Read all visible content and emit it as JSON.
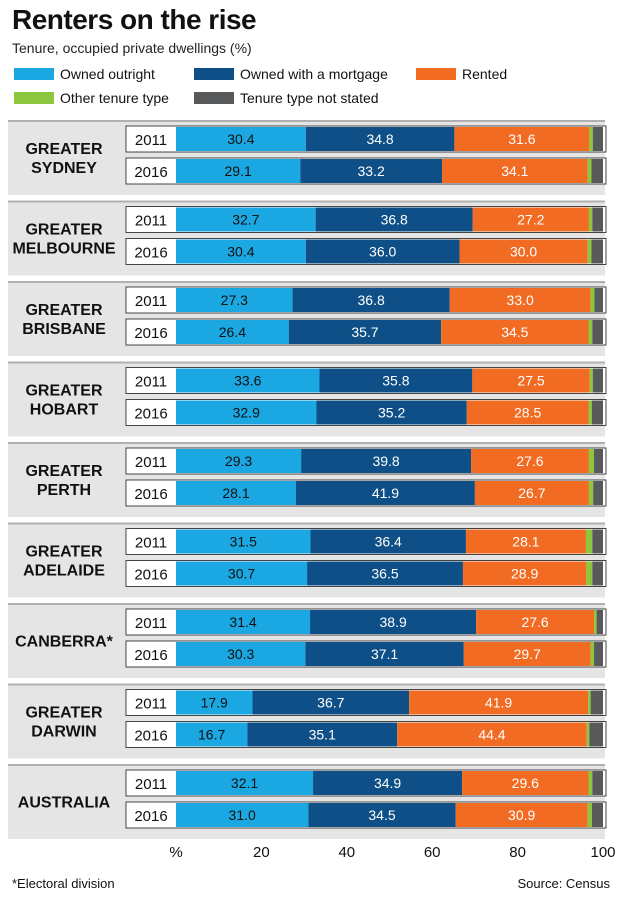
{
  "chart_data": {
    "type": "bar",
    "stacked": true,
    "orientation": "horizontal",
    "title": "Renters on the rise",
    "subtitle": "Tenure, occupied private dwellings (%)",
    "xlim": [
      0,
      100
    ],
    "xticks": [
      "%",
      "20",
      "40",
      "60",
      "80",
      "100"
    ],
    "legend": [
      {
        "name": "Owned outright",
        "color": "#1ba7e1"
      },
      {
        "name": "Owned with a mortgage",
        "color": "#0d4f86"
      },
      {
        "name": "Rented",
        "color": "#f26b22"
      },
      {
        "name": "Other tenure type",
        "color": "#8cc63f"
      },
      {
        "name": "Tenure type not stated",
        "color": "#58595b"
      }
    ],
    "groups": [
      {
        "name": "GREATER\nSYDNEY",
        "rows": [
          {
            "year": "2011",
            "values": [
              30.4,
              34.8,
              31.6,
              0.8,
              2.4
            ]
          },
          {
            "year": "2016",
            "values": [
              29.1,
              33.2,
              34.1,
              0.9,
              2.7
            ]
          }
        ]
      },
      {
        "name": "GREATER\nMELBOURNE",
        "rows": [
          {
            "year": "2011",
            "values": [
              32.7,
              36.8,
              27.2,
              0.8,
              2.5
            ]
          },
          {
            "year": "2016",
            "values": [
              30.4,
              36.0,
              30.0,
              0.9,
              2.7
            ]
          }
        ]
      },
      {
        "name": "GREATER\nBRISBANE",
        "rows": [
          {
            "year": "2011",
            "values": [
              27.3,
              36.8,
              33.0,
              0.9,
              2.0
            ]
          },
          {
            "year": "2016",
            "values": [
              26.4,
              35.7,
              34.5,
              0.9,
              2.5
            ]
          }
        ]
      },
      {
        "name": "GREATER\nHOBART",
        "rows": [
          {
            "year": "2011",
            "values": [
              33.6,
              35.8,
              27.5,
              0.7,
              2.4
            ]
          },
          {
            "year": "2016",
            "values": [
              32.9,
              35.2,
              28.5,
              0.8,
              2.6
            ]
          }
        ]
      },
      {
        "name": "GREATER\nPERTH",
        "rows": [
          {
            "year": "2011",
            "values": [
              29.3,
              39.8,
              27.6,
              1.2,
              2.1
            ]
          },
          {
            "year": "2016",
            "values": [
              28.1,
              41.9,
              26.7,
              1.0,
              2.3
            ]
          }
        ]
      },
      {
        "name": "GREATER\nADELAIDE",
        "rows": [
          {
            "year": "2011",
            "values": [
              31.5,
              36.4,
              28.1,
              1.5,
              2.5
            ]
          },
          {
            "year": "2016",
            "values": [
              30.7,
              36.5,
              28.9,
              1.4,
              2.5
            ]
          }
        ]
      },
      {
        "name": "CANBERRA*",
        "rows": [
          {
            "year": "2011",
            "values": [
              31.4,
              38.9,
              27.6,
              0.6,
              1.5
            ]
          },
          {
            "year": "2016",
            "values": [
              30.3,
              37.1,
              29.7,
              0.8,
              2.1
            ]
          }
        ]
      },
      {
        "name": "GREATER\nDARWIN",
        "rows": [
          {
            "year": "2011",
            "values": [
              17.9,
              36.7,
              41.9,
              0.6,
              2.9
            ]
          },
          {
            "year": "2016",
            "values": [
              16.7,
              35.1,
              44.4,
              0.6,
              3.2
            ]
          }
        ]
      },
      {
        "name": "AUSTRALIA",
        "rows": [
          {
            "year": "2011",
            "values": [
              32.1,
              34.9,
              29.6,
              0.9,
              2.5
            ]
          },
          {
            "year": "2016",
            "values": [
              31.0,
              34.5,
              30.9,
              1.0,
              2.6
            ]
          }
        ]
      }
    ],
    "footnote": "*Electoral division",
    "source": "Source: Census"
  }
}
